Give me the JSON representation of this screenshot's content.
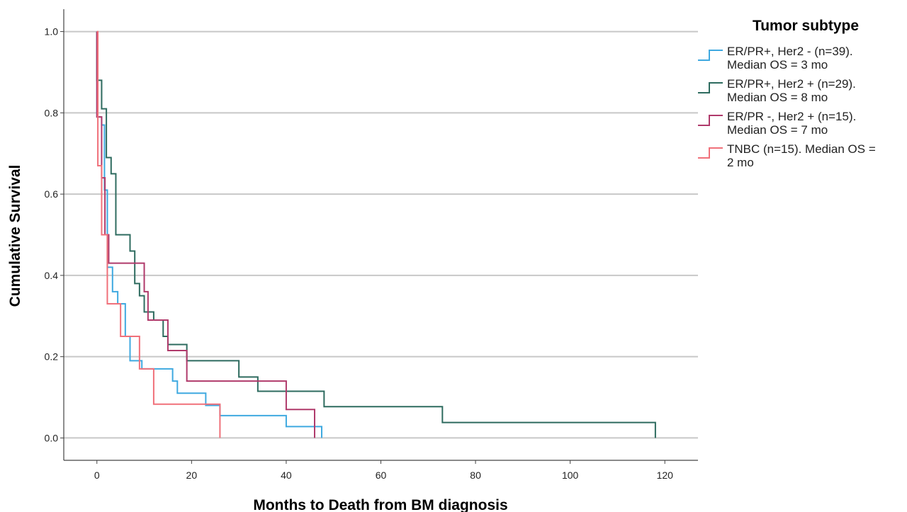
{
  "chart_data": {
    "type": "line",
    "xlabel": "Months to Death from BM diagnosis",
    "ylabel": "Cumulative Survival",
    "xlim": [
      -7,
      127
    ],
    "ylim": [
      -0.055,
      1.055
    ],
    "x_ticks": [
      0,
      20,
      40,
      60,
      80,
      100,
      120
    ],
    "y_ticks": [
      0.0,
      0.2,
      0.4,
      0.6,
      0.8,
      1.0
    ],
    "x_tick_labels": [
      "0",
      "20",
      "40",
      "60",
      "80",
      "100",
      "120"
    ],
    "y_tick_labels": [
      "0.0",
      "0.2",
      "0.4",
      "0.6",
      "0.8",
      "1.0"
    ],
    "grid": "horizontal",
    "legend": {
      "title": "Tumor subtype",
      "position": "top-right"
    },
    "series": [
      {
        "name_lines": [
          "ER/PR+, Her2 - (n=39).",
          "Median OS = 3 mo"
        ],
        "color": "#3fa9e0",
        "steps": [
          [
            0,
            0.79
          ],
          [
            1,
            0.77
          ],
          [
            1.6,
            0.61
          ],
          [
            2.2,
            0.42
          ],
          [
            3.3,
            0.36
          ],
          [
            4.4,
            0.33
          ],
          [
            6,
            0.25
          ],
          [
            7,
            0.19
          ],
          [
            9.5,
            0.17
          ],
          [
            16,
            0.14
          ],
          [
            17,
            0.11
          ],
          [
            23,
            0.08
          ],
          [
            26,
            0.055
          ],
          [
            40,
            0.028
          ],
          [
            47.5,
            0.0
          ]
        ],
        "end": 47.5
      },
      {
        "name_lines": [
          "ER/PR+, Her2 + (n=29).",
          "Median OS = 8 mo"
        ],
        "color": "#2e6b5f",
        "steps": [
          [
            0,
            0.88
          ],
          [
            1,
            0.81
          ],
          [
            2,
            0.69
          ],
          [
            3,
            0.65
          ],
          [
            4,
            0.5
          ],
          [
            7,
            0.46
          ],
          [
            8,
            0.38
          ],
          [
            9,
            0.35
          ],
          [
            10,
            0.31
          ],
          [
            12,
            0.29
          ],
          [
            14,
            0.25
          ],
          [
            15,
            0.23
          ],
          [
            19,
            0.19
          ],
          [
            30,
            0.15
          ],
          [
            34,
            0.115
          ],
          [
            48,
            0.077
          ],
          [
            73,
            0.038
          ],
          [
            118,
            0.0
          ]
        ],
        "end": 118
      },
      {
        "name_lines": [
          "ER/PR -, Her2 + (n=15).",
          "Median OS = 7 mo"
        ],
        "color": "#b03a6b",
        "steps": [
          [
            0,
            0.79
          ],
          [
            1,
            0.64
          ],
          [
            1.7,
            0.5
          ],
          [
            2.5,
            0.43
          ],
          [
            10,
            0.36
          ],
          [
            10.8,
            0.29
          ],
          [
            15,
            0.215
          ],
          [
            19,
            0.14
          ],
          [
            40,
            0.07
          ],
          [
            46,
            0.0
          ]
        ],
        "end": 46
      },
      {
        "name_lines": [
          "TNBC (n=15). Median OS =",
          "2 mo"
        ],
        "color": "#f0707a",
        "steps": [
          [
            0,
            1.0
          ],
          [
            0.2,
            0.67
          ],
          [
            1,
            0.5
          ],
          [
            2.2,
            0.33
          ],
          [
            5,
            0.25
          ],
          [
            9,
            0.17
          ],
          [
            12,
            0.083
          ],
          [
            26,
            0.0
          ]
        ],
        "end": 26
      }
    ]
  }
}
